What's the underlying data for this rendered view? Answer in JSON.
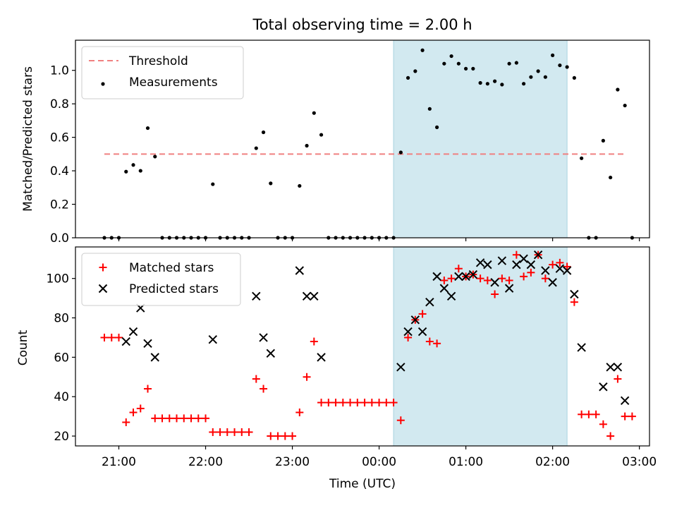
{
  "chart_data": [
    {
      "type": "scatter",
      "title": "Total observing time = 2.00 h",
      "xlabel": "",
      "ylabel": "Matched/Predicted stars",
      "ylim": [
        0,
        1.18
      ],
      "x_ticks": [
        "21:00",
        "22:00",
        "23:00",
        "00:00",
        "01:00",
        "02:00",
        "03:00"
      ],
      "y_ticks": [
        "0.0",
        "0.2",
        "0.4",
        "0.6",
        "0.8",
        "1.0"
      ],
      "highlight_span": {
        "start": "00:10",
        "end": "02:10",
        "color": "#d2e9f0"
      },
      "legend_position": "upper-left",
      "threshold": {
        "name": "Threshold",
        "value": 0.5,
        "start": "20:50",
        "end": "02:50",
        "color": "#f08080"
      },
      "series": [
        {
          "name": "Measurements",
          "marker": "dot",
          "color": "#000000",
          "points": [
            [
              "20:50",
              0
            ],
            [
              "20:55",
              0
            ],
            [
              "21:00",
              0
            ],
            [
              "21:05",
              0.395
            ],
            [
              "21:10",
              0.435
            ],
            [
              "21:15",
              0.4
            ],
            [
              "21:20",
              0.655
            ],
            [
              "21:25",
              0.485
            ],
            [
              "21:30",
              0
            ],
            [
              "21:35",
              0
            ],
            [
              "21:40",
              0
            ],
            [
              "21:45",
              0
            ],
            [
              "21:50",
              0
            ],
            [
              "21:55",
              0
            ],
            [
              "22:00",
              0
            ],
            [
              "22:05",
              0.32
            ],
            [
              "22:10",
              0
            ],
            [
              "22:15",
              0
            ],
            [
              "22:20",
              0
            ],
            [
              "22:25",
              0
            ],
            [
              "22:30",
              0
            ],
            [
              "22:35",
              0.535
            ],
            [
              "22:40",
              0.63
            ],
            [
              "22:45",
              0.325
            ],
            [
              "22:50",
              0
            ],
            [
              "22:55",
              0
            ],
            [
              "23:00",
              0
            ],
            [
              "23:05",
              0.31
            ],
            [
              "23:10",
              0.55
            ],
            [
              "23:15",
              0.745
            ],
            [
              "23:20",
              0.615
            ],
            [
              "23:25",
              0
            ],
            [
              "23:30",
              0
            ],
            [
              "23:35",
              0
            ],
            [
              "23:40",
              0
            ],
            [
              "23:45",
              0
            ],
            [
              "23:50",
              0
            ],
            [
              "23:55",
              0
            ],
            [
              "00:00",
              0
            ],
            [
              "00:05",
              0
            ],
            [
              "00:10",
              0
            ],
            [
              "00:15",
              0.51
            ],
            [
              "00:20",
              0.955
            ],
            [
              "00:25",
              0.995
            ],
            [
              "00:30",
              1.12
            ],
            [
              "00:35",
              0.77
            ],
            [
              "00:40",
              0.66
            ],
            [
              "00:45",
              1.04
            ],
            [
              "00:50",
              1.085
            ],
            [
              "00:55",
              1.04
            ],
            [
              "01:00",
              1.01
            ],
            [
              "01:05",
              1.01
            ],
            [
              "01:10",
              0.925
            ],
            [
              "01:15",
              0.92
            ],
            [
              "01:20",
              0.935
            ],
            [
              "01:25",
              0.915
            ],
            [
              "01:30",
              1.04
            ],
            [
              "01:35",
              1.045
            ],
            [
              "01:40",
              0.92
            ],
            [
              "01:45",
              0.96
            ],
            [
              "01:50",
              0.995
            ],
            [
              "01:55",
              0.96
            ],
            [
              "02:00",
              1.09
            ],
            [
              "02:05",
              1.03
            ],
            [
              "02:10",
              1.02
            ],
            [
              "02:15",
              0.955
            ],
            [
              "02:20",
              0.475
            ],
            [
              "02:25",
              0
            ],
            [
              "02:30",
              0
            ],
            [
              "02:35",
              0.58
            ],
            [
              "02:40",
              0.36
            ],
            [
              "02:45",
              0.885
            ],
            [
              "02:50",
              0.79
            ],
            [
              "02:55",
              0
            ]
          ]
        }
      ]
    },
    {
      "type": "scatter",
      "title": "",
      "xlabel": "Time (UTC)",
      "ylabel": "Count",
      "ylim": [
        15,
        116
      ],
      "x_ticks": [
        "21:00",
        "22:00",
        "23:00",
        "00:00",
        "01:00",
        "02:00",
        "03:00"
      ],
      "y_ticks": [
        "20",
        "40",
        "60",
        "80",
        "100"
      ],
      "highlight_span": {
        "start": "00:10",
        "end": "02:10",
        "color": "#d2e9f0"
      },
      "legend_position": "upper-left",
      "series": [
        {
          "name": "Matched stars",
          "marker": "plus",
          "color": "#ff0000",
          "points": [
            [
              "20:50",
              70
            ],
            [
              "20:55",
              70
            ],
            [
              "21:00",
              70
            ],
            [
              "21:05",
              27
            ],
            [
              "21:10",
              32
            ],
            [
              "21:15",
              34
            ],
            [
              "21:20",
              44
            ],
            [
              "21:25",
              29
            ],
            [
              "21:30",
              29
            ],
            [
              "21:35",
              29
            ],
            [
              "21:40",
              29
            ],
            [
              "21:45",
              29
            ],
            [
              "21:50",
              29
            ],
            [
              "21:55",
              29
            ],
            [
              "22:00",
              29
            ],
            [
              "22:05",
              22
            ],
            [
              "22:10",
              22
            ],
            [
              "22:15",
              22
            ],
            [
              "22:20",
              22
            ],
            [
              "22:25",
              22
            ],
            [
              "22:30",
              22
            ],
            [
              "22:35",
              49
            ],
            [
              "22:40",
              44
            ],
            [
              "22:45",
              20
            ],
            [
              "22:50",
              20
            ],
            [
              "22:55",
              20
            ],
            [
              "23:00",
              20
            ],
            [
              "23:05",
              32
            ],
            [
              "23:10",
              50
            ],
            [
              "23:15",
              68
            ],
            [
              "23:20",
              37
            ],
            [
              "23:25",
              37
            ],
            [
              "23:30",
              37
            ],
            [
              "23:35",
              37
            ],
            [
              "23:40",
              37
            ],
            [
              "23:45",
              37
            ],
            [
              "23:50",
              37
            ],
            [
              "23:55",
              37
            ],
            [
              "00:00",
              37
            ],
            [
              "00:05",
              37
            ],
            [
              "00:10",
              37
            ],
            [
              "00:15",
              28
            ],
            [
              "00:20",
              70
            ],
            [
              "00:25",
              79
            ],
            [
              "00:30",
              82
            ],
            [
              "00:35",
              68
            ],
            [
              "00:40",
              67
            ],
            [
              "00:45",
              99
            ],
            [
              "00:50",
              100
            ],
            [
              "00:55",
              105
            ],
            [
              "01:00",
              101
            ],
            [
              "01:05",
              102
            ],
            [
              "01:10",
              100
            ],
            [
              "01:15",
              99
            ],
            [
              "01:20",
              92
            ],
            [
              "01:25",
              100
            ],
            [
              "01:30",
              99
            ],
            [
              "01:35",
              112
            ],
            [
              "01:40",
              101
            ],
            [
              "01:45",
              103
            ],
            [
              "01:50",
              112
            ],
            [
              "01:55",
              100
            ],
            [
              "02:00",
              107
            ],
            [
              "02:05",
              108
            ],
            [
              "02:10",
              106
            ],
            [
              "02:15",
              88
            ],
            [
              "02:20",
              31
            ],
            [
              "02:25",
              31
            ],
            [
              "02:30",
              31
            ],
            [
              "02:35",
              26
            ],
            [
              "02:40",
              20
            ],
            [
              "02:45",
              49
            ],
            [
              "02:50",
              30
            ],
            [
              "02:55",
              30
            ]
          ]
        },
        {
          "name": "Predicted stars",
          "marker": "x",
          "color": "#000000",
          "points": [
            [
              "21:05",
              68
            ],
            [
              "21:10",
              73
            ],
            [
              "21:15",
              85
            ],
            [
              "21:20",
              67
            ],
            [
              "21:25",
              60
            ],
            [
              "22:05",
              69
            ],
            [
              "22:35",
              91
            ],
            [
              "22:40",
              70
            ],
            [
              "22:45",
              62
            ],
            [
              "23:05",
              104
            ],
            [
              "23:10",
              91
            ],
            [
              "23:15",
              91
            ],
            [
              "23:20",
              60
            ],
            [
              "00:15",
              55
            ],
            [
              "00:20",
              73
            ],
            [
              "00:25",
              79
            ],
            [
              "00:30",
              73
            ],
            [
              "00:35",
              88
            ],
            [
              "00:40",
              101
            ],
            [
              "00:45",
              95
            ],
            [
              "00:50",
              91
            ],
            [
              "00:55",
              101
            ],
            [
              "01:00",
              101
            ],
            [
              "01:05",
              102
            ],
            [
              "01:10",
              108
            ],
            [
              "01:15",
              107
            ],
            [
              "01:20",
              98
            ],
            [
              "01:25",
              109
            ],
            [
              "01:30",
              95
            ],
            [
              "01:35",
              107
            ],
            [
              "01:40",
              110
            ],
            [
              "01:45",
              107
            ],
            [
              "01:50",
              112
            ],
            [
              "01:55",
              104
            ],
            [
              "02:00",
              98
            ],
            [
              "02:05",
              105
            ],
            [
              "02:10",
              104
            ],
            [
              "02:15",
              92
            ],
            [
              "02:20",
              65
            ],
            [
              "02:35",
              45
            ],
            [
              "02:40",
              55
            ],
            [
              "02:45",
              55
            ],
            [
              "02:50",
              38
            ]
          ]
        }
      ]
    }
  ]
}
